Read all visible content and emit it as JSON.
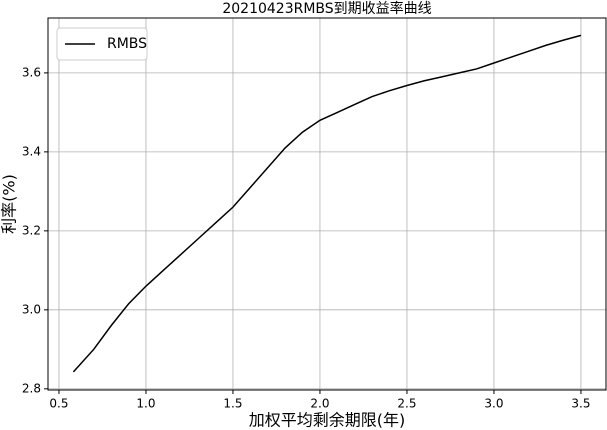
{
  "chart_data": {
    "type": "line",
    "title": "20210423RMBS到期收益率曲线",
    "x_label": "加权平均剩余期限(年)",
    "y_label": "利率(%)",
    "x": [
      0.583,
      0.7,
      0.8,
      0.9,
      1.0,
      1.1,
      1.2,
      1.3,
      1.4,
      1.5,
      1.6,
      1.7,
      1.8,
      1.9,
      2.0,
      2.1,
      2.2,
      2.3,
      2.4,
      2.5,
      2.6,
      2.7,
      2.8,
      2.9,
      3.0,
      3.1,
      3.2,
      3.3,
      3.4,
      3.5
    ],
    "series": [
      {
        "name": "RMBS",
        "color": "#000000",
        "values": [
          2.843,
          2.9,
          2.96,
          3.015,
          3.06,
          3.1,
          3.14,
          3.18,
          3.22,
          3.26,
          3.31,
          3.36,
          3.41,
          3.45,
          3.48,
          3.5,
          3.52,
          3.54,
          3.555,
          3.568,
          3.58,
          3.59,
          3.6,
          3.61,
          3.625,
          3.64,
          3.655,
          3.67,
          3.683,
          3.695
        ]
      }
    ],
    "xlim": [
      0.437,
      3.644
    ],
    "ylim": [
      2.797,
      3.739
    ],
    "xticks": [
      0.5,
      {
        "value": 1,
        "label": "1.0"
      },
      1.5,
      {
        "value": 2,
        "label": "2.0"
      },
      2.5,
      {
        "value": 3,
        "label": "3.0"
      },
      3.5
    ],
    "yticks": [
      2.8,
      {
        "value": 3,
        "label": "3.0"
      },
      3.2,
      3.4,
      3.6
    ],
    "grid": true,
    "legend": "upper-left"
  }
}
